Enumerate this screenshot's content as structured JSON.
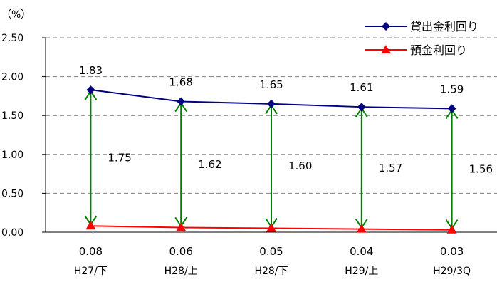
{
  "chart_data": {
    "type": "line",
    "ylabel": "（%）",
    "ylim": [
      0,
      2.5
    ],
    "yticks": [
      "0.00",
      "0.50",
      "1.00",
      "1.50",
      "2.00",
      "2.50"
    ],
    "ytick_values": [
      0,
      0.5,
      1.0,
      1.5,
      2.0,
      2.5
    ],
    "grid": true,
    "legend_position": "top-right",
    "categories": [
      "H27/下",
      "H28/上",
      "H28/下",
      "H29/上",
      "H29/3Q"
    ],
    "series": [
      {
        "name": "貸出金利回り",
        "values": [
          1.83,
          1.68,
          1.65,
          1.61,
          1.59
        ],
        "labels": [
          "1.83",
          "1.68",
          "1.65",
          "1.61",
          "1.59"
        ],
        "color": "#000080",
        "marker": "diamond"
      },
      {
        "name": "預金利回り",
        "values": [
          0.08,
          0.06,
          0.05,
          0.04,
          0.03
        ],
        "labels": [
          "0.08",
          "0.06",
          "0.05",
          "0.04",
          "0.03"
        ],
        "color": "#ff0000",
        "marker": "triangle"
      }
    ],
    "spreads": {
      "values": [
        1.75,
        1.62,
        1.6,
        1.57,
        1.56
      ],
      "labels": [
        "1.75",
        "1.62",
        "1.60",
        "1.57",
        "1.56"
      ],
      "color": "#008000"
    }
  }
}
